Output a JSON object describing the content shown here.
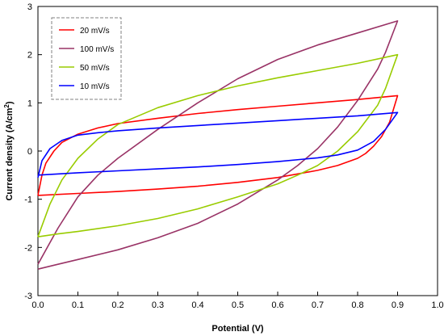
{
  "chart_data": {
    "type": "line",
    "xlabel": "Potential (V)",
    "ylabel": "Current density (A/cm",
    "ylabel_sup": "2",
    "ylabel_end": ")",
    "xlim": [
      0.0,
      1.0
    ],
    "ylim": [
      -3,
      3
    ],
    "x_ticks": [
      0.0,
      0.1,
      0.2,
      0.3,
      0.4,
      0.5,
      0.6,
      0.7,
      0.8,
      0.9,
      1.0
    ],
    "x_tick_labels": [
      "0.0",
      "0.1",
      "0.2",
      "0.3",
      "0.4",
      "0.5",
      "0.6",
      "0.7",
      "0.8",
      "0.9",
      "1.0"
    ],
    "y_ticks": [
      -3,
      -2,
      -1,
      0,
      1,
      2,
      3
    ],
    "y_tick_labels": [
      "-3",
      "-2",
      "-1",
      "0",
      "1",
      "2",
      "3"
    ],
    "grid": false,
    "legend_position": "top-left",
    "series": [
      {
        "name": "20 mV/s",
        "color": "#ff0000",
        "x": [
          0.0,
          0.01,
          0.02,
          0.04,
          0.06,
          0.1,
          0.15,
          0.2,
          0.3,
          0.4,
          0.5,
          0.6,
          0.7,
          0.8,
          0.9,
          0.9,
          0.88,
          0.86,
          0.84,
          0.82,
          0.8,
          0.75,
          0.7,
          0.6,
          0.5,
          0.4,
          0.3,
          0.2,
          0.1,
          0.0
        ],
        "y": [
          -0.92,
          -0.5,
          -0.25,
          0.0,
          0.18,
          0.35,
          0.48,
          0.57,
          0.68,
          0.78,
          0.86,
          0.93,
          1.0,
          1.07,
          1.15,
          1.15,
          0.6,
          0.3,
          0.1,
          -0.05,
          -0.15,
          -0.3,
          -0.4,
          -0.55,
          -0.65,
          -0.73,
          -0.79,
          -0.84,
          -0.88,
          -0.92
        ]
      },
      {
        "name": "100 mV/s",
        "color": "#993366",
        "x": [
          0.0,
          0.05,
          0.1,
          0.15,
          0.2,
          0.3,
          0.4,
          0.5,
          0.6,
          0.7,
          0.8,
          0.9,
          0.9,
          0.87,
          0.85,
          0.8,
          0.75,
          0.7,
          0.65,
          0.6,
          0.5,
          0.4,
          0.3,
          0.2,
          0.1,
          0.05,
          0.0
        ],
        "y": [
          -2.35,
          -1.6,
          -0.95,
          -0.5,
          -0.15,
          0.45,
          1.0,
          1.5,
          1.9,
          2.2,
          2.45,
          2.7,
          2.7,
          2.05,
          1.7,
          1.05,
          0.5,
          0.05,
          -0.3,
          -0.6,
          -1.1,
          -1.5,
          -1.8,
          -2.05,
          -2.25,
          -2.35,
          -2.45
        ]
      },
      {
        "name": "50 mV/s",
        "color": "#99cc00",
        "x": [
          0.0,
          0.03,
          0.06,
          0.1,
          0.15,
          0.2,
          0.3,
          0.4,
          0.5,
          0.6,
          0.7,
          0.8,
          0.9,
          0.9,
          0.87,
          0.85,
          0.8,
          0.75,
          0.7,
          0.65,
          0.6,
          0.5,
          0.4,
          0.3,
          0.2,
          0.1,
          0.05,
          0.0
        ],
        "y": [
          -1.78,
          -1.1,
          -0.6,
          -0.15,
          0.25,
          0.55,
          0.9,
          1.15,
          1.35,
          1.52,
          1.67,
          1.82,
          2.0,
          2.0,
          1.3,
          0.95,
          0.4,
          0.0,
          -0.3,
          -0.5,
          -0.68,
          -0.95,
          -1.2,
          -1.4,
          -1.55,
          -1.67,
          -1.72,
          -1.78
        ]
      },
      {
        "name": "10 mV/s",
        "color": "#0000ff",
        "x": [
          0.0,
          0.01,
          0.03,
          0.06,
          0.1,
          0.15,
          0.2,
          0.3,
          0.4,
          0.5,
          0.6,
          0.7,
          0.8,
          0.9,
          0.9,
          0.87,
          0.84,
          0.8,
          0.75,
          0.7,
          0.6,
          0.5,
          0.4,
          0.3,
          0.2,
          0.1,
          0.0
        ],
        "y": [
          -0.55,
          -0.2,
          0.05,
          0.22,
          0.33,
          0.38,
          0.42,
          0.48,
          0.53,
          0.58,
          0.63,
          0.68,
          0.73,
          0.8,
          0.8,
          0.45,
          0.2,
          0.02,
          -0.08,
          -0.14,
          -0.22,
          -0.28,
          -0.33,
          -0.37,
          -0.41,
          -0.45,
          -0.5
        ]
      }
    ]
  }
}
